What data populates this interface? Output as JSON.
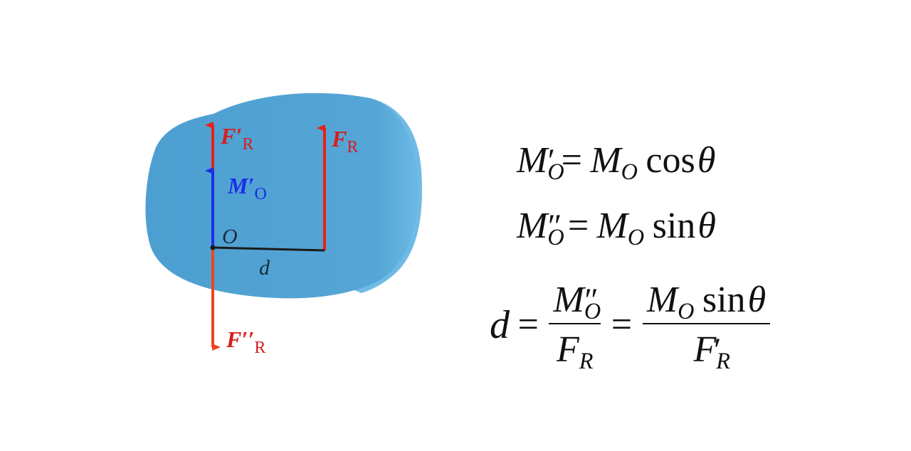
{
  "diagram": {
    "point_label": "O",
    "distance_label": "d",
    "forces": {
      "f_prime": {
        "symbol": "F′",
        "subscript": "R"
      },
      "f_r": {
        "symbol": "F",
        "subscript": "R"
      },
      "f_double_prime": {
        "symbol": "F′′",
        "subscript": "R"
      },
      "moment": {
        "symbol": "M′",
        "subscript": "O"
      }
    }
  },
  "equations": {
    "eq1": {
      "lhs": "M",
      "lhs_sub": "O",
      "lhs_mark": "′",
      "eq": "=",
      "rhs": "M",
      "rhs_sub": "O",
      "fn": "cos",
      "var": "θ"
    },
    "eq2": {
      "lhs": "M",
      "lhs_sub": "O",
      "lhs_mark": "″",
      "eq": "=",
      "rhs": "M",
      "rhs_sub": "O",
      "fn": "sin",
      "var": "θ"
    },
    "eq3": {
      "lhs": "d",
      "eq1": "=",
      "eq2": "=",
      "frac1_num": "M",
      "frac1_num_sub": "O",
      "frac1_num_mark": "″",
      "frac1_den": "F",
      "frac1_den_sub": "R",
      "frac2_num": "M",
      "frac2_num_sub": "O",
      "frac2_fn": "sin",
      "frac2_var": "θ",
      "frac2_den": "F",
      "frac2_den_sub": "R",
      "frac2_den_mark": "′"
    }
  }
}
